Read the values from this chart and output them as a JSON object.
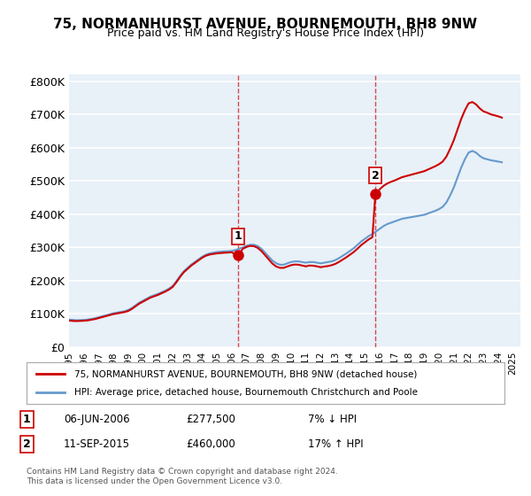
{
  "title": "75, NORMANHURST AVENUE, BOURNEMOUTH, BH8 9NW",
  "subtitle": "Price paid vs. HM Land Registry's House Price Index (HPI)",
  "ylabel_ticks": [
    "£0",
    "£100K",
    "£200K",
    "£300K",
    "£400K",
    "£500K",
    "£600K",
    "£700K",
    "£800K"
  ],
  "ytick_values": [
    0,
    100000,
    200000,
    300000,
    400000,
    500000,
    600000,
    700000,
    800000
  ],
  "ylim": [
    0,
    820000
  ],
  "xlim_start": 1995.0,
  "xlim_end": 2025.5,
  "purchase1_x": 2006.44,
  "purchase1_y": 277500,
  "purchase1_label": "1",
  "purchase2_x": 2015.7,
  "purchase2_y": 460000,
  "purchase2_label": "2",
  "line_color_property": "#cc0000",
  "line_color_hpi": "#6699cc",
  "background_color": "#e8f0f8",
  "grid_color": "#ffffff",
  "legend_text1": "75, NORMANHURST AVENUE, BOURNEMOUTH, BH8 9NW (detached house)",
  "legend_text2": "HPI: Average price, detached house, Bournemouth Christchurch and Poole",
  "table_row1": [
    "1",
    "06-JUN-2006",
    "£277,500",
    "7% ↓ HPI"
  ],
  "table_row2": [
    "2",
    "11-SEP-2015",
    "£460,000",
    "17% ↑ HPI"
  ],
  "footer": "Contains HM Land Registry data © Crown copyright and database right 2024.\nThis data is licensed under the Open Government Licence v3.0.",
  "hpi_years": [
    1995.0,
    1995.25,
    1995.5,
    1995.75,
    1996.0,
    1996.25,
    1996.5,
    1996.75,
    1997.0,
    1997.25,
    1997.5,
    1997.75,
    1998.0,
    1998.25,
    1998.5,
    1998.75,
    1999.0,
    1999.25,
    1999.5,
    1999.75,
    2000.0,
    2000.25,
    2000.5,
    2000.75,
    2001.0,
    2001.25,
    2001.5,
    2001.75,
    2002.0,
    2002.25,
    2002.5,
    2002.75,
    2003.0,
    2003.25,
    2003.5,
    2003.75,
    2004.0,
    2004.25,
    2004.5,
    2004.75,
    2005.0,
    2005.25,
    2005.5,
    2005.75,
    2006.0,
    2006.25,
    2006.5,
    2006.75,
    2007.0,
    2007.25,
    2007.5,
    2007.75,
    2008.0,
    2008.25,
    2008.5,
    2008.75,
    2009.0,
    2009.25,
    2009.5,
    2009.75,
    2010.0,
    2010.25,
    2010.5,
    2010.75,
    2011.0,
    2011.25,
    2011.5,
    2011.75,
    2012.0,
    2012.25,
    2012.5,
    2012.75,
    2013.0,
    2013.25,
    2013.5,
    2013.75,
    2014.0,
    2014.25,
    2014.5,
    2014.75,
    2015.0,
    2015.25,
    2015.5,
    2015.75,
    2016.0,
    2016.25,
    2016.5,
    2016.75,
    2017.0,
    2017.25,
    2017.5,
    2017.75,
    2018.0,
    2018.25,
    2018.5,
    2018.75,
    2019.0,
    2019.25,
    2019.5,
    2019.75,
    2020.0,
    2020.25,
    2020.5,
    2020.75,
    2021.0,
    2021.25,
    2021.5,
    2021.75,
    2022.0,
    2022.25,
    2022.5,
    2022.75,
    2023.0,
    2023.25,
    2023.5,
    2023.75,
    2024.0,
    2024.25
  ],
  "hpi_values": [
    83000,
    82000,
    81000,
    81500,
    82000,
    83000,
    85000,
    87000,
    90000,
    93000,
    96000,
    99000,
    102000,
    104000,
    106000,
    108000,
    112000,
    118000,
    126000,
    134000,
    140000,
    146000,
    152000,
    156000,
    160000,
    165000,
    170000,
    176000,
    184000,
    198000,
    214000,
    228000,
    238000,
    248000,
    256000,
    264000,
    272000,
    278000,
    282000,
    284000,
    286000,
    287000,
    288000,
    288500,
    289000,
    292000,
    296000,
    300000,
    305000,
    308000,
    308000,
    304000,
    296000,
    284000,
    272000,
    260000,
    252000,
    248000,
    248000,
    252000,
    256000,
    258000,
    258000,
    256000,
    254000,
    256000,
    256000,
    254000,
    252000,
    254000,
    256000,
    258000,
    262000,
    268000,
    275000,
    282000,
    290000,
    298000,
    308000,
    318000,
    326000,
    334000,
    340000,
    348000,
    356000,
    364000,
    370000,
    374000,
    378000,
    382000,
    386000,
    388000,
    390000,
    392000,
    394000,
    396000,
    398000,
    402000,
    406000,
    410000,
    415000,
    422000,
    435000,
    456000,
    480000,
    510000,
    540000,
    565000,
    585000,
    590000,
    585000,
    575000,
    568000,
    565000,
    562000,
    560000,
    558000,
    556000
  ],
  "property_years": [
    1995.0,
    1995.25,
    1995.5,
    1995.75,
    1996.0,
    1996.25,
    1996.5,
    1996.75,
    1997.0,
    1997.25,
    1997.5,
    1997.75,
    1998.0,
    1998.25,
    1998.5,
    1998.75,
    1999.0,
    1999.25,
    1999.5,
    1999.75,
    2000.0,
    2000.25,
    2000.5,
    2000.75,
    2001.0,
    2001.25,
    2001.5,
    2001.75,
    2002.0,
    2002.25,
    2002.5,
    2002.75,
    2003.0,
    2003.25,
    2003.5,
    2003.75,
    2004.0,
    2004.25,
    2004.5,
    2004.75,
    2005.0,
    2005.25,
    2005.5,
    2005.75,
    2006.0,
    2006.25,
    2006.44,
    2006.75,
    2007.0,
    2007.25,
    2007.5,
    2007.75,
    2008.0,
    2008.25,
    2008.5,
    2008.75,
    2009.0,
    2009.25,
    2009.5,
    2009.75,
    2010.0,
    2010.25,
    2010.5,
    2010.75,
    2011.0,
    2011.25,
    2011.5,
    2011.75,
    2012.0,
    2012.25,
    2012.5,
    2012.75,
    2013.0,
    2013.25,
    2013.5,
    2013.75,
    2014.0,
    2014.25,
    2014.5,
    2014.75,
    2015.0,
    2015.25,
    2015.5,
    2015.7,
    2016.0,
    2016.25,
    2016.5,
    2016.75,
    2017.0,
    2017.25,
    2017.5,
    2017.75,
    2018.0,
    2018.25,
    2018.5,
    2018.75,
    2019.0,
    2019.25,
    2019.5,
    2019.75,
    2020.0,
    2020.25,
    2020.5,
    2020.75,
    2021.0,
    2021.25,
    2021.5,
    2021.75,
    2022.0,
    2022.25,
    2022.5,
    2022.75,
    2023.0,
    2023.25,
    2023.5,
    2023.75,
    2024.0,
    2024.25
  ],
  "property_values": [
    80000,
    79000,
    78500,
    79000,
    79500,
    80500,
    82500,
    84500,
    87500,
    90500,
    93500,
    96500,
    99500,
    101500,
    103500,
    105500,
    109000,
    115000,
    123000,
    131000,
    137000,
    143000,
    149000,
    153000,
    157000,
    162000,
    167000,
    173000,
    181000,
    195000,
    211000,
    225000,
    235000,
    245000,
    253000,
    261000,
    269000,
    275000,
    278500,
    280500,
    282000,
    283000,
    284000,
    284500,
    285500,
    278000,
    277500,
    296000,
    301500,
    304500,
    303500,
    298500,
    289000,
    276500,
    263500,
    251000,
    242500,
    238500,
    238500,
    242500,
    246500,
    248500,
    248000,
    245500,
    243000,
    245500,
    245000,
    243000,
    240500,
    242500,
    244000,
    246500,
    250500,
    256500,
    263500,
    270500,
    278500,
    286500,
    296500,
    307000,
    315500,
    324000,
    330500,
    460000,
    475000,
    485000,
    492000,
    497000,
    501000,
    506000,
    511000,
    514000,
    517000,
    520000,
    523000,
    526000,
    529000,
    534000,
    539000,
    544000,
    550000,
    558000,
    573000,
    596000,
    622000,
    654000,
    686000,
    712000,
    733000,
    737000,
    730000,
    718000,
    709000,
    705000,
    700000,
    697000,
    694000,
    690000
  ]
}
